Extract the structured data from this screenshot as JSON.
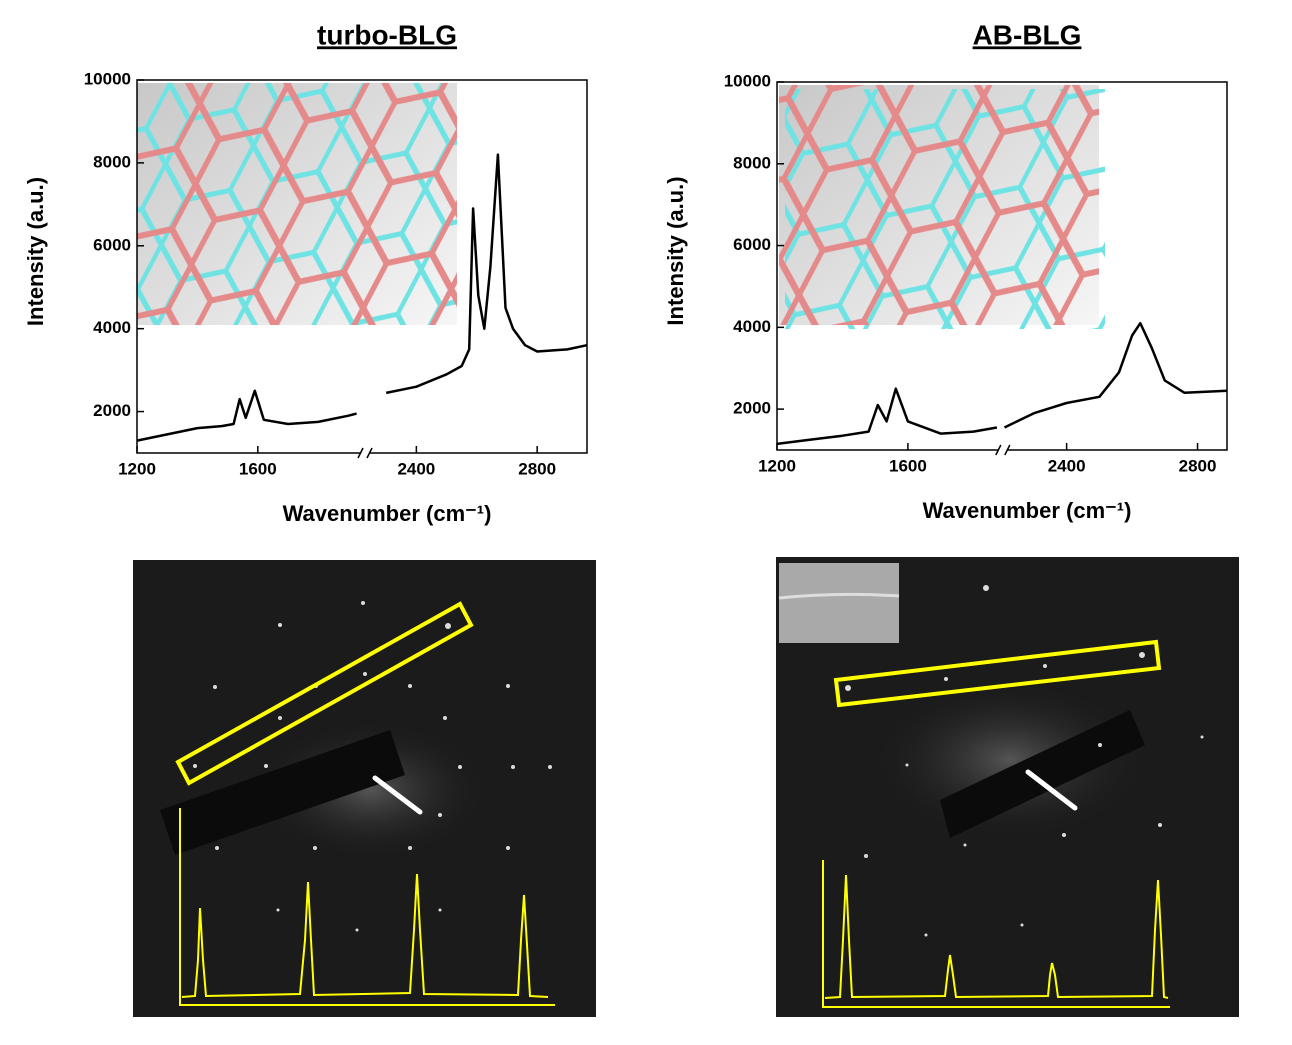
{
  "chart_data": [
    {
      "type": "line",
      "title": "turbo-BLG",
      "x_label": "Wavenumber (cm⁻¹)",
      "y_label": "Intensity  (a.u.)",
      "xlim": [
        1200,
        2965
      ],
      "x_break": [
        1955,
        2230
      ],
      "xticks": [
        1200,
        1600,
        2400,
        2800
      ],
      "ylim": [
        1000,
        10000
      ],
      "yticks": [
        2000,
        4000,
        6000,
        8000,
        10000
      ],
      "series": [
        {
          "color": "#000000",
          "x": [
            1200,
            1300,
            1400,
            1480,
            1520,
            1540,
            1560,
            1590,
            1620,
            1700,
            1800,
            1900,
            1927,
            2240,
            2300,
            2400,
            2500,
            2550,
            2575,
            2588,
            2605,
            2625,
            2645,
            2670,
            2695,
            2720,
            2760,
            2800,
            2900,
            2965
          ],
          "values": [
            1300,
            1450,
            1600,
            1650,
            1700,
            2300,
            1850,
            2500,
            1800,
            1700,
            1750,
            1900,
            1950,
            null,
            2450,
            2600,
            2900,
            3100,
            3500,
            6900,
            4800,
            4000,
            5500,
            8200,
            4500,
            4000,
            3600,
            3450,
            3500,
            3600
          ]
        }
      ]
    },
    {
      "type": "line",
      "title": "AB-BLG",
      "x_label": "Wavenumber (cm⁻¹)",
      "y_label": "Intensity  (a.u.)",
      "xlim": [
        1200,
        2890
      ],
      "x_break": [
        1890,
        2205
      ],
      "xticks": [
        1200,
        1600,
        2400,
        2800
      ],
      "ylim": [
        1000,
        10000
      ],
      "yticks": [
        2000,
        4000,
        6000,
        8000,
        10000
      ],
      "series": [
        {
          "color": "#000000",
          "x": [
            1200,
            1300,
            1400,
            1480,
            1508,
            1535,
            1563,
            1600,
            1700,
            1800,
            1872,
            2210,
            2300,
            2400,
            2500,
            2560,
            2600,
            2625,
            2660,
            2700,
            2760,
            2890
          ],
          "values": [
            1150,
            1250,
            1350,
            1450,
            2100,
            1700,
            2500,
            1700,
            1400,
            1450,
            1550,
            1550,
            1900,
            2150,
            2300,
            2900,
            3800,
            4100,
            3500,
            2700,
            2400,
            2450
          ]
        }
      ]
    }
  ]
}
